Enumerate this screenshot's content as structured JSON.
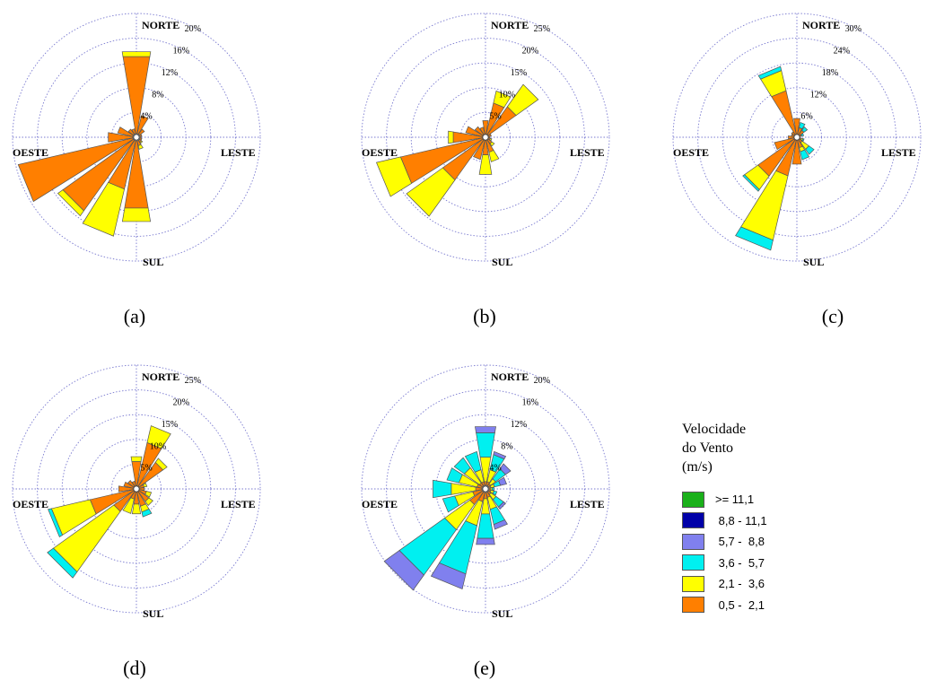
{
  "chart_data": [
    {
      "type": "polar-bar",
      "panel_label": "(a)",
      "directions": [
        "N",
        "NNE",
        "NE",
        "ENE",
        "E",
        "ESE",
        "SE",
        "SSE",
        "S",
        "SSW",
        "SW",
        "WSW",
        "W",
        "WNW",
        "NW",
        "NNW"
      ],
      "compass_labels": {
        "north": "NORTE",
        "south": "SUL",
        "east": "LESTE",
        "west": "OESTE"
      },
      "ring_labels": [
        "4%",
        "8%",
        "12%",
        "16%",
        "20%"
      ],
      "r_max": 20,
      "series": [
        {
          "name": "0,5 -  2,1",
          "values": [
            12.6,
            3,
            1,
            0.3,
            0.2,
            0.3,
            0.4,
            0.8,
            11,
            8,
            14,
            19,
            4,
            2.5,
            1,
            0.8
          ]
        },
        {
          "name": "2,1 -  3,6",
          "values": [
            0.8,
            0,
            0,
            0,
            0,
            0,
            0.2,
            0.6,
            2.2,
            7.8,
            1,
            0,
            0,
            0,
            0,
            0
          ]
        },
        {
          "name": "3,6 -  5,7",
          "values": [
            0,
            0,
            0,
            0,
            0,
            0,
            0,
            0,
            0,
            0,
            0,
            0,
            0,
            0,
            0,
            0
          ]
        },
        {
          "name": "5,7 -  8,8",
          "values": [
            0,
            0,
            0,
            0,
            0,
            0,
            0,
            0,
            0,
            0,
            0,
            0,
            0,
            0,
            0,
            0
          ]
        }
      ]
    },
    {
      "type": "polar-bar",
      "panel_label": "(b)",
      "directions": [
        "N",
        "NNE",
        "NE",
        "ENE",
        "E",
        "ESE",
        "SE",
        "SSE",
        "S",
        "SSW",
        "SW",
        "WSW",
        "W",
        "WNW",
        "NW",
        "NNW"
      ],
      "compass_labels": {
        "north": "NORTE",
        "south": "SUL",
        "east": "LESTE",
        "west": "OESTE"
      },
      "ring_labels": [
        "5%",
        "10%",
        "15%",
        "20%",
        "25%"
      ],
      "r_max": 25,
      "series": [
        {
          "name": "0,5 -  2,1",
          "values": [
            2.8,
            6.5,
            7,
            0.6,
            0.3,
            0.4,
            1,
            2.5,
            3,
            4,
            10,
            17,
            6,
            3.5,
            2,
            1.5
          ]
        },
        {
          "name": "2,1 -  3,6",
          "values": [
            0,
            2.5,
            5.5,
            0,
            0,
            0.3,
            0.6,
            2,
            4,
            0,
            9,
            5,
            1,
            0,
            0,
            0
          ]
        },
        {
          "name": "3,6 -  5,7",
          "values": [
            0,
            0,
            0,
            0,
            0,
            0,
            0,
            0,
            0,
            0,
            0,
            0,
            0,
            0,
            0,
            0
          ]
        },
        {
          "name": "5,7 -  8,8",
          "values": [
            0,
            0,
            0,
            0,
            0,
            0,
            0,
            0,
            0,
            0,
            0,
            0,
            0,
            0,
            0,
            0
          ]
        }
      ]
    },
    {
      "type": "polar-bar",
      "panel_label": "(c)",
      "directions": [
        "N",
        "NNE",
        "NE",
        "ENE",
        "E",
        "ESE",
        "SE",
        "SSE",
        "S",
        "SSW",
        "SW",
        "WSW",
        "W",
        "WNW",
        "NW",
        "NNW"
      ],
      "compass_labels": {
        "north": "NORTE",
        "south": "SUL",
        "east": "LESTE",
        "west": "OESTE"
      },
      "ring_labels": [
        "6%",
        "12%",
        "18%",
        "24%",
        "30%"
      ],
      "r_max": 30,
      "series": [
        {
          "name": "0,5 -  2,1",
          "values": [
            4,
            1.8,
            1.5,
            0.6,
            0.2,
            0.5,
            1,
            2,
            6,
            9,
            11,
            5,
            1.5,
            0.8,
            1,
            11
          ]
        },
        {
          "name": "2,1 -  3,6",
          "values": [
            0,
            0,
            0,
            0,
            0,
            0.4,
            2,
            1,
            0,
            16,
            4,
            0,
            0,
            0,
            0,
            5
          ]
        },
        {
          "name": "3,6 -  5,7",
          "values": [
            0,
            1.3,
            1,
            0.5,
            0,
            0.3,
            1.5,
            2,
            0,
            2.5,
            0.5,
            0,
            0,
            0,
            0,
            1
          ]
        },
        {
          "name": "5,7 -  8,8",
          "values": [
            0,
            0,
            0,
            0,
            0,
            0,
            0,
            0,
            0,
            0,
            0,
            0,
            0,
            0,
            0,
            0
          ]
        }
      ]
    },
    {
      "type": "polar-bar",
      "panel_label": "(d)",
      "directions": [
        "N",
        "NNE",
        "NE",
        "ENE",
        "E",
        "ESE",
        "SE",
        "SSE",
        "S",
        "SSW",
        "SW",
        "WSW",
        "W",
        "WNW",
        "NW",
        "NNW"
      ],
      "compass_labels": {
        "north": "NORTE",
        "south": "SUL",
        "east": "LESTE",
        "west": "OESTE"
      },
      "ring_labels": [
        "5%",
        "10%",
        "15%",
        "20%",
        "25%"
      ],
      "r_max": 25,
      "series": [
        {
          "name": "0,5 -  2,1",
          "values": [
            5,
            9,
            6,
            1,
            1,
            1.5,
            2.5,
            3,
            2.5,
            1.5,
            5,
            9,
            3,
            2,
            1.5,
            1
          ]
        },
        {
          "name": "2,1 -  3,6",
          "values": [
            1,
            3.5,
            1,
            0.6,
            0,
            1,
            1,
            1.2,
            2,
            3,
            15,
            8,
            0,
            0,
            0,
            0
          ]
        },
        {
          "name": "3,6 -  5,7",
          "values": [
            0,
            0,
            0,
            0,
            0,
            0,
            0,
            1,
            0,
            0,
            1.5,
            0.7,
            0,
            0,
            0,
            0
          ]
        },
        {
          "name": "5,7 -  8,8",
          "values": [
            0,
            0,
            0,
            0,
            0,
            0,
            0,
            0,
            0,
            0,
            0,
            0,
            0,
            0,
            0,
            0
          ]
        }
      ]
    },
    {
      "type": "polar-bar",
      "panel_label": "(e)",
      "directions": [
        "N",
        "NNE",
        "NE",
        "ENE",
        "E",
        "ESE",
        "SE",
        "SSE",
        "S",
        "SSW",
        "SW",
        "WSW",
        "W",
        "WNW",
        "NW",
        "NNW"
      ],
      "compass_labels": {
        "north": "NORTE",
        "south": "SUL",
        "east": "LESTE",
        "west": "OESTE"
      },
      "ring_labels": [
        "4%",
        "8%",
        "12%",
        "16%",
        "20%"
      ],
      "r_max": 20,
      "series": [
        {
          "name": "0,5 -  2,1",
          "values": [
            0.6,
            0.6,
            0.4,
            0.3,
            0.2,
            0.3,
            0.5,
            0.8,
            1,
            1.5,
            2.5,
            1.5,
            1,
            0.8,
            0.6,
            0.6
          ]
        },
        {
          "name": "2,1 -  3,6",
          "values": [
            4,
            2,
            1,
            0.6,
            0.3,
            0.5,
            1,
            2,
            2.5,
            4,
            5,
            3,
            4,
            3,
            3,
            2
          ]
        },
        {
          "name": "3,6 -  5,7",
          "values": [
            4,
            2.5,
            2,
            1,
            0.3,
            0.5,
            1.5,
            2.5,
            4,
            8,
            9,
            2,
            3,
            2,
            2,
            3
          ]
        },
        {
          "name": "5,7 -  8,8",
          "values": [
            1,
            0.5,
            1,
            1,
            0,
            0,
            0.4,
            0.8,
            1,
            2.5,
            3,
            0,
            0,
            0,
            0,
            0
          ]
        }
      ]
    }
  ],
  "legend": {
    "title_lines": [
      "Velocidade",
      "do Vento",
      "(m/s)"
    ],
    "items": [
      {
        "label": ">= 11,1",
        "color": "#1ab01a"
      },
      {
        "label": " 8,8 - 11,1",
        "color": "#0000a8"
      },
      {
        "label": " 5,7 -  8,8",
        "color": "#8080ee"
      },
      {
        "label": " 3,6 -  5,7",
        "color": "#00f0f0"
      },
      {
        "label": " 2,1 -  3,6",
        "color": "#ffff00"
      },
      {
        "label": " 0,5 -  2,1",
        "color": "#ff7f00"
      }
    ]
  },
  "colors": {
    "grid": "#7a7ad0",
    "bin_0_5_2_1": "#ff7f00",
    "bin_2_1_3_6": "#ffff00",
    "bin_3_6_5_7": "#00f0f0",
    "bin_5_7_8_8": "#8080ee"
  }
}
